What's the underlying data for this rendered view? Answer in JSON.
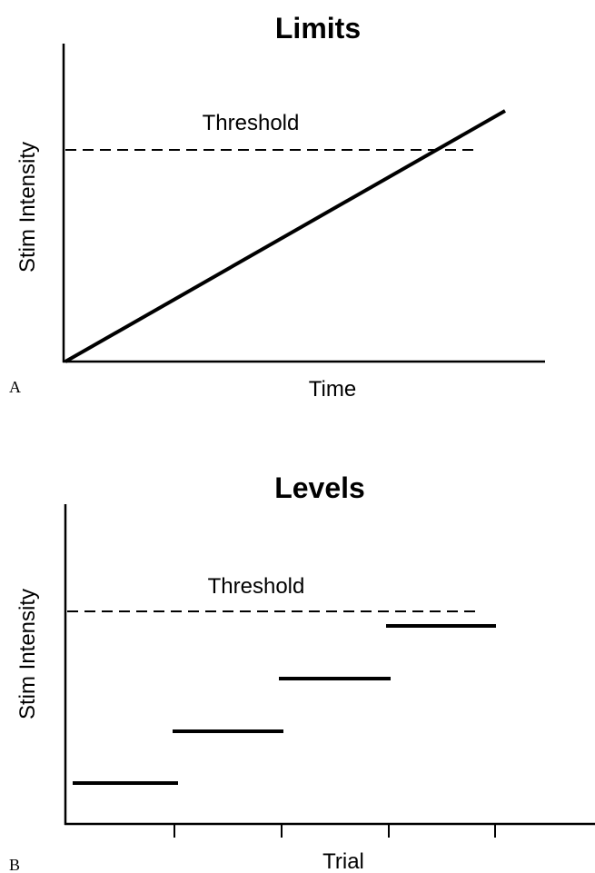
{
  "panels": [
    {
      "letter": "A",
      "title": "Limits",
      "y_label": "Stim Intensity",
      "x_label": "Time",
      "threshold_label": "Threshold"
    },
    {
      "letter": "B",
      "title": "Levels",
      "y_label": "Stim Intensity",
      "x_label": "Trial",
      "threshold_label": "Threshold"
    }
  ]
}
